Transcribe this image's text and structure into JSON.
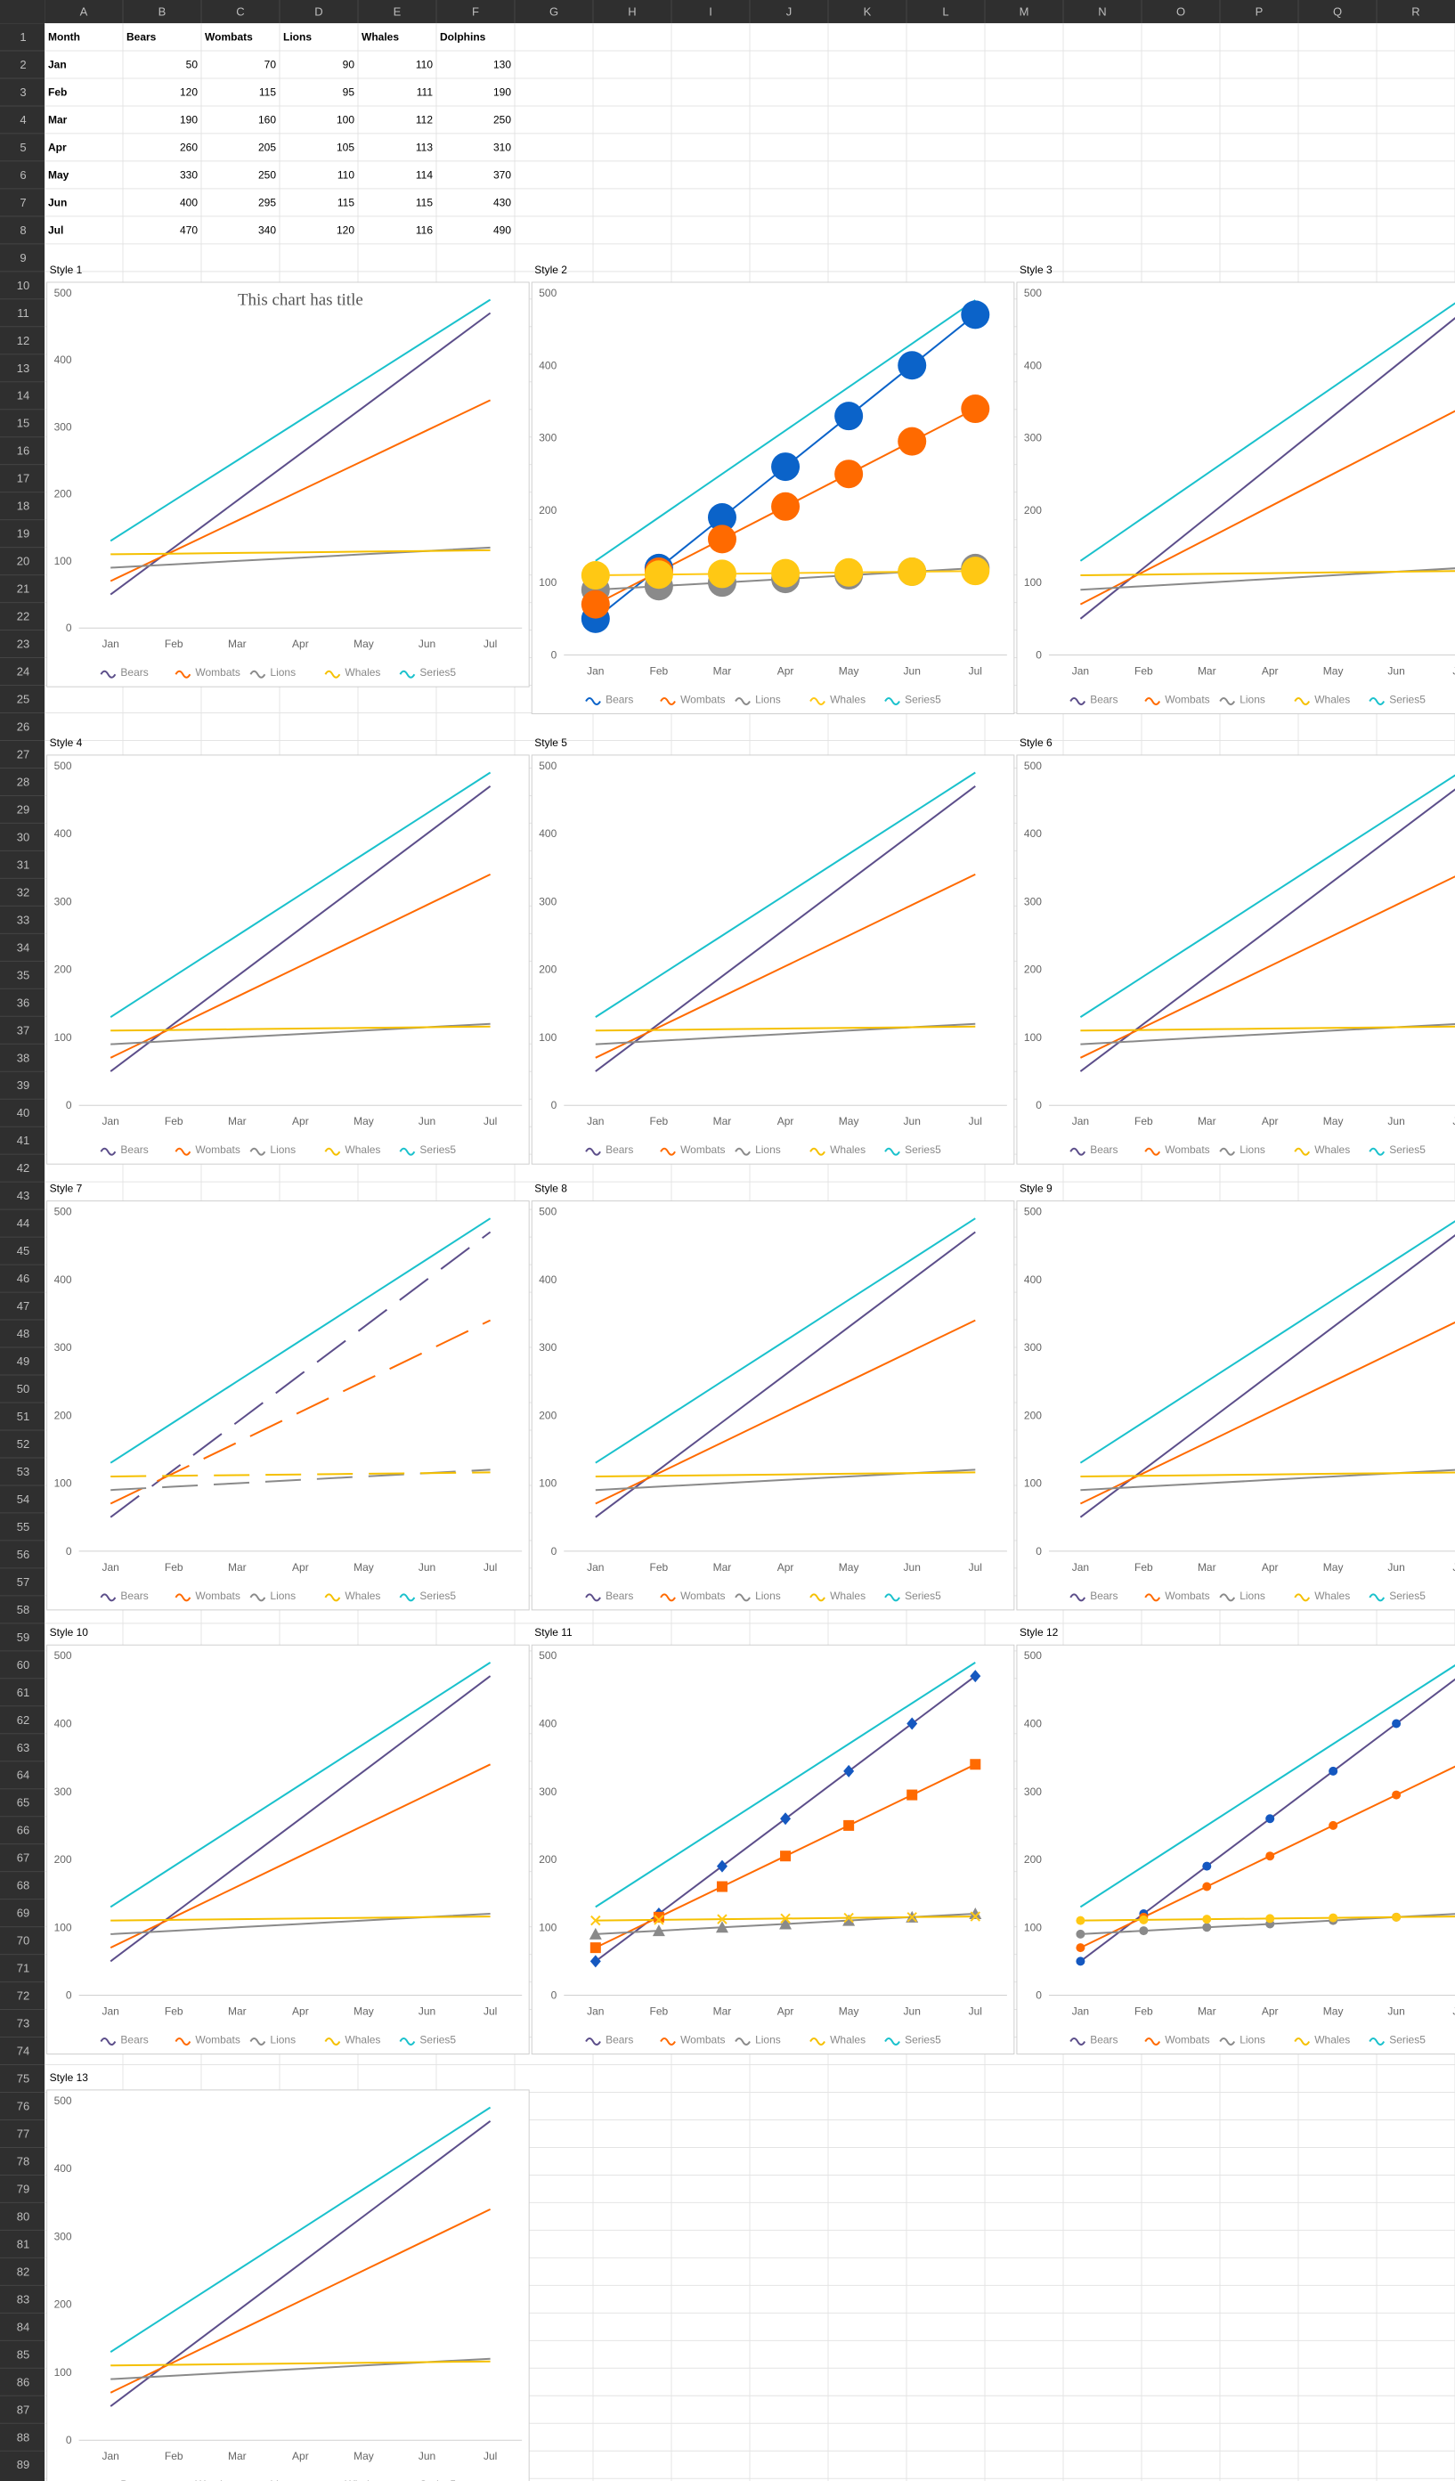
{
  "sheet": {
    "columns": [
      "A",
      "B",
      "C",
      "D",
      "E",
      "F",
      "G",
      "H",
      "I",
      "J",
      "K",
      "L",
      "M",
      "N",
      "O",
      "P",
      "Q",
      "R"
    ],
    "rows": [
      "1",
      "2",
      "3",
      "4",
      "5",
      "6",
      "7",
      "8",
      "9",
      "10",
      "11",
      "12",
      "13",
      "14",
      "15",
      "16",
      "17",
      "18",
      "19",
      "20",
      "21",
      "22",
      "23",
      "24",
      "25",
      "26",
      "27",
      "28",
      "29",
      "30",
      "31",
      "32",
      "33",
      "34",
      "35",
      "36",
      "37",
      "38",
      "39",
      "40",
      "41",
      "42",
      "43",
      "44",
      "45",
      "46",
      "47",
      "48",
      "49",
      "50",
      "51",
      "52",
      "53",
      "54",
      "55",
      "56",
      "57",
      "58",
      "59",
      "60",
      "61",
      "62",
      "63",
      "64",
      "65",
      "66",
      "67",
      "68",
      "69",
      "70",
      "71",
      "72",
      "73",
      "74",
      "75",
      "76",
      "77",
      "78",
      "79",
      "80",
      "81",
      "82",
      "83",
      "84",
      "85",
      "86",
      "87",
      "88",
      "89"
    ],
    "table": {
      "headers": [
        "Month",
        "Bears",
        "Wombats",
        "Lions",
        "Whales",
        "Dolphins"
      ],
      "rows": [
        [
          "Jan",
          "50",
          "70",
          "90",
          "110",
          "130"
        ],
        [
          "Feb",
          "120",
          "115",
          "95",
          "111",
          "190"
        ],
        [
          "Mar",
          "190",
          "160",
          "100",
          "112",
          "250"
        ],
        [
          "Apr",
          "260",
          "205",
          "105",
          "113",
          "310"
        ],
        [
          "May",
          "330",
          "250",
          "110",
          "114",
          "370"
        ],
        [
          "Jun",
          "400",
          "295",
          "115",
          "115",
          "430"
        ],
        [
          "Jul",
          "470",
          "340",
          "120",
          "116",
          "490"
        ]
      ]
    }
  },
  "chart_common": {
    "type": "line",
    "categories": [
      "Jan",
      "Feb",
      "Mar",
      "Apr",
      "May",
      "Jun",
      "Jul"
    ],
    "ylim": [
      0,
      500
    ],
    "yticks": [
      "0",
      "100",
      "200",
      "300",
      "400",
      "500"
    ],
    "legend_position": "bottom",
    "series": [
      {
        "name": "Bears",
        "values": [
          50,
          120,
          190,
          260,
          330,
          400,
          470
        ]
      },
      {
        "name": "Wombats",
        "values": [
          70,
          115,
          160,
          205,
          250,
          295,
          340
        ]
      },
      {
        "name": "Lions",
        "values": [
          90,
          95,
          100,
          105,
          110,
          115,
          120
        ]
      },
      {
        "name": "Whales",
        "values": [
          110,
          111,
          112,
          113,
          114,
          115,
          116
        ]
      },
      {
        "name": "Series5",
        "values": [
          130,
          190,
          250,
          310,
          370,
          430,
          490
        ]
      }
    ]
  },
  "colors": {
    "style1": [
      "#5c4e8a",
      "#ff6a00",
      "#8a8a8a",
      "#f5c000",
      "#1ac1cc"
    ],
    "style2": [
      "#0b63c9",
      "#ff6a00",
      "#8a8a8a",
      "#ffc814",
      "#1ac1cc"
    ],
    "markers": [
      "#1558c0",
      "#ff6a00",
      "#8a8a8a",
      "#ffc814",
      "#1ac1cc"
    ]
  },
  "chart_data": [
    {
      "type": "line",
      "label": "Style 1",
      "title": "This chart has title",
      "categories": [
        "Jan",
        "Feb",
        "Mar",
        "Apr",
        "May",
        "Jun",
        "Jul"
      ],
      "ylim": [
        0,
        500
      ],
      "legend": "bottom",
      "series": [
        {
          "name": "Bears",
          "values": [
            50,
            120,
            190,
            260,
            330,
            400,
            470
          ]
        },
        {
          "name": "Wombats",
          "values": [
            70,
            115,
            160,
            205,
            250,
            295,
            340
          ]
        },
        {
          "name": "Lions",
          "values": [
            90,
            95,
            100,
            105,
            110,
            115,
            120
          ]
        },
        {
          "name": "Whales",
          "values": [
            110,
            111,
            112,
            113,
            114,
            115,
            116
          ]
        },
        {
          "name": "Series5",
          "values": [
            130,
            190,
            250,
            310,
            370,
            430,
            490
          ]
        }
      ]
    },
    {
      "type": "line",
      "label": "Style 2",
      "title": "",
      "markers": "big-circle",
      "categories": [
        "Jan",
        "Feb",
        "Mar",
        "Apr",
        "May",
        "Jun",
        "Jul"
      ],
      "ylim": [
        0,
        500
      ],
      "legend": "bottom"
    },
    {
      "type": "line",
      "label": "Style 3",
      "title": "",
      "categories": [
        "Jan",
        "Feb",
        "Mar",
        "Apr",
        "May",
        "Jun",
        "Jul"
      ],
      "ylim": [
        0,
        500
      ],
      "legend": "bottom"
    },
    {
      "type": "line",
      "label": "Style 4",
      "title": "",
      "categories": [
        "Jan",
        "Feb",
        "Mar",
        "Apr",
        "May",
        "Jun",
        "Jul"
      ],
      "ylim": [
        0,
        500
      ],
      "legend": "bottom"
    },
    {
      "type": "line",
      "label": "Style 5",
      "title": "",
      "categories": [
        "Jan",
        "Feb",
        "Mar",
        "Apr",
        "May",
        "Jun",
        "Jul"
      ],
      "ylim": [
        0,
        500
      ],
      "legend": "bottom"
    },
    {
      "type": "line",
      "label": "Style 6",
      "title": "",
      "categories": [
        "Jan",
        "Feb",
        "Mar",
        "Apr",
        "May",
        "Jun",
        "Jul"
      ],
      "ylim": [
        0,
        500
      ],
      "legend": "bottom"
    },
    {
      "type": "line",
      "label": "Style 7",
      "title": "",
      "dashed": true,
      "categories": [
        "Jan",
        "Feb",
        "Mar",
        "Apr",
        "May",
        "Jun",
        "Jul"
      ],
      "ylim": [
        0,
        500
      ],
      "legend": "bottom"
    },
    {
      "type": "line",
      "label": "Style 8",
      "title": "",
      "categories": [
        "Jan",
        "Feb",
        "Mar",
        "Apr",
        "May",
        "Jun",
        "Jul"
      ],
      "ylim": [
        0,
        500
      ],
      "legend": "bottom"
    },
    {
      "type": "line",
      "label": "Style 9",
      "title": "",
      "categories": [
        "Jan",
        "Feb",
        "Mar",
        "Apr",
        "May",
        "Jun",
        "Jul"
      ],
      "ylim": [
        0,
        500
      ],
      "legend": "bottom"
    },
    {
      "type": "line",
      "label": "Style 10",
      "title": "",
      "categories": [
        "Jan",
        "Feb",
        "Mar",
        "Apr",
        "May",
        "Jun",
        "Jul"
      ],
      "ylim": [
        0,
        500
      ],
      "legend": "bottom"
    },
    {
      "type": "line",
      "label": "Style 11",
      "title": "",
      "markers": "mixed",
      "categories": [
        "Jan",
        "Feb",
        "Mar",
        "Apr",
        "May",
        "Jun",
        "Jul"
      ],
      "ylim": [
        0,
        500
      ],
      "legend": "bottom"
    },
    {
      "type": "line",
      "label": "Style 12",
      "title": "",
      "markers": "small-circle",
      "categories": [
        "Jan",
        "Feb",
        "Mar",
        "Apr",
        "May",
        "Jun",
        "Jul"
      ],
      "ylim": [
        0,
        500
      ],
      "legend": "bottom"
    },
    {
      "type": "line",
      "label": "Style 13",
      "title": "",
      "categories": [
        "Jan",
        "Feb",
        "Mar",
        "Apr",
        "May",
        "Jun",
        "Jul"
      ],
      "ylim": [
        0,
        500
      ],
      "legend": "bottom"
    }
  ]
}
